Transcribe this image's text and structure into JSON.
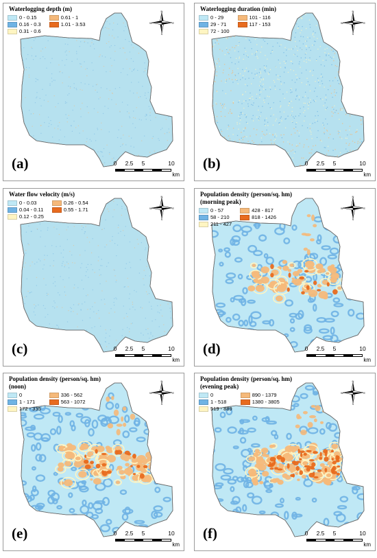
{
  "panels": [
    {
      "label": "(a)",
      "title": [
        "Waterlogging depth (m)"
      ],
      "base_color": "#b6e1ef",
      "pattern": "uniform",
      "legend": [
        {
          "text": "0 - 0.15",
          "color": "#bfe8f5"
        },
        {
          "text": "0.61 - 1",
          "color": "#f5b97a"
        },
        {
          "text": "0.16 - 0.3",
          "color": "#6fb3e4"
        },
        {
          "text": "1.01 - 3.53",
          "color": "#e86b1f"
        },
        {
          "text": "0.31 - 0.6",
          "color": "#fff5c2"
        }
      ]
    },
    {
      "label": "(b)",
      "title": [
        "Waterlogging duration (min)"
      ],
      "base_color": "#b6e1ef",
      "pattern": "speckle",
      "legend": [
        {
          "text": "0 - 29",
          "color": "#bfe8f5"
        },
        {
          "text": "101 - 116",
          "color": "#f5b97a"
        },
        {
          "text": "29 - 71",
          "color": "#6fb3e4"
        },
        {
          "text": "117 - 153",
          "color": "#e86b1f"
        },
        {
          "text": "72 - 100",
          "color": "#fff5c2"
        }
      ]
    },
    {
      "label": "(c)",
      "title": [
        "Water flow velocity (m/s)"
      ],
      "base_color": "#b6e1ef",
      "pattern": "uniform",
      "legend": [
        {
          "text": "0 - 0.03",
          "color": "#bfe8f5"
        },
        {
          "text": "0.26 - 0.54",
          "color": "#f5b97a"
        },
        {
          "text": "0.04 - 0.11",
          "color": "#6fb3e4"
        },
        {
          "text": "0.55 - 1.71",
          "color": "#e86b1f"
        },
        {
          "text": "0.12 - 0.25",
          "color": "#fff5c2"
        }
      ]
    },
    {
      "label": "(d)",
      "title": [
        "Population density (person/sq. hm)",
        "(morning peak)"
      ],
      "base_color": "#bfe8f5",
      "pattern": "density-low",
      "legend": [
        {
          "text": "0 - 57",
          "color": "#bfe8f5"
        },
        {
          "text": "428 - 817",
          "color": "#f5b97a"
        },
        {
          "text": "58 - 210",
          "color": "#6fb3e4"
        },
        {
          "text": "818 - 1426",
          "color": "#e86b1f"
        },
        {
          "text": "211 - 427",
          "color": "#fff5c2"
        }
      ]
    },
    {
      "label": "(e)",
      "title": [
        "Population density (person/sq. hm)",
        "(noon)"
      ],
      "base_color": "#bfe8f5",
      "pattern": "density-mid",
      "legend": [
        {
          "text": "0",
          "color": "#bfe8f5"
        },
        {
          "text": "336 - 562",
          "color": "#f5b97a"
        },
        {
          "text": "1 - 171",
          "color": "#6fb3e4"
        },
        {
          "text": "563 - 1072",
          "color": "#e86b1f"
        },
        {
          "text": "172 - 335",
          "color": "#fff5c2"
        }
      ]
    },
    {
      "label": "(f)",
      "title": [
        "Population density (person/sq. hm)",
        "(evening peak)"
      ],
      "base_color": "#bfe8f5",
      "pattern": "density-high",
      "legend": [
        {
          "text": "0",
          "color": "#bfe8f5"
        },
        {
          "text": "890 - 1379",
          "color": "#f5b97a"
        },
        {
          "text": "1 - 518",
          "color": "#6fb3e4"
        },
        {
          "text": "1380 - 3805",
          "color": "#e86b1f"
        },
        {
          "text": "519 - 889",
          "color": "#fff5c2"
        }
      ]
    }
  ],
  "scale": {
    "ticks": [
      "0",
      "2.5",
      "5",
      "10"
    ],
    "unit": "km"
  },
  "compass": {
    "n": "N",
    "s": "S",
    "e": "E",
    "w": "W"
  }
}
